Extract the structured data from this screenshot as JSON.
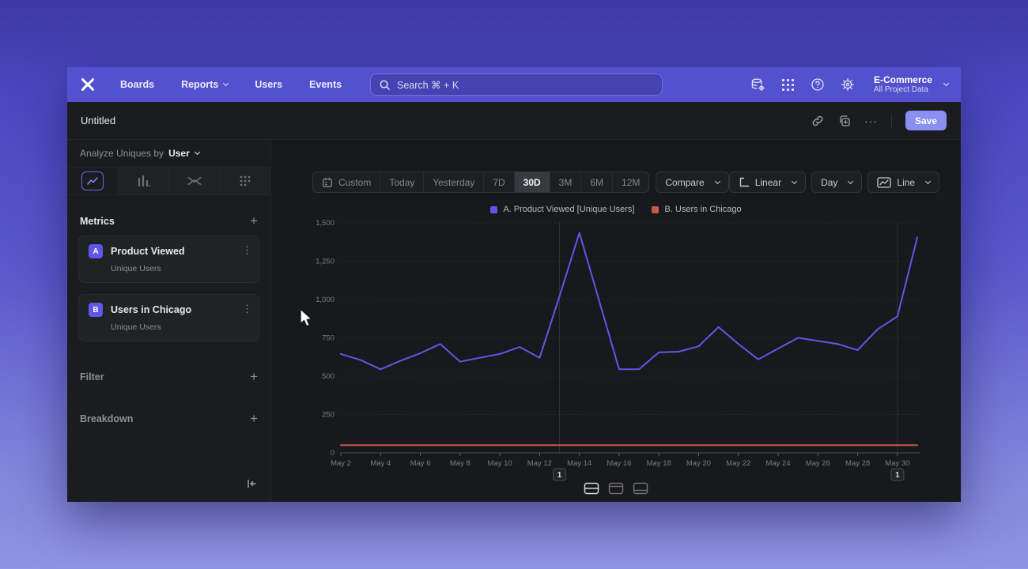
{
  "nav": {
    "items": [
      "Boards",
      "Reports",
      "Users",
      "Events"
    ],
    "search": {
      "placeholder": "Search  ⌘ + K"
    },
    "project": {
      "name": "E-Commerce",
      "scope": "All Project Data"
    }
  },
  "toolbar": {
    "title": "Untitled",
    "save_label": "Save"
  },
  "icons": {
    "more_glyph": "···",
    "kebab_glyph": "⋮",
    "plus_glyph": "+"
  },
  "sidebar": {
    "analyze_prefix": "Analyze Uniques by",
    "analyze_value": "User",
    "metrics_header": "Metrics",
    "metrics": [
      {
        "badge": "A",
        "name": "Product Viewed",
        "sub": "Unique Users"
      },
      {
        "badge": "B",
        "name": "Users in Chicago",
        "sub": "Unique Users"
      }
    ],
    "filter_header": "Filter",
    "breakdown_header": "Breakdown"
  },
  "controls": {
    "date_ranges": [
      "Custom",
      "Today",
      "Yesterday",
      "7D",
      "30D",
      "3M",
      "6M",
      "12M"
    ],
    "selected_range": "30D",
    "compare_label": "Compare",
    "scale_label": "Linear",
    "interval_label": "Day",
    "chart_type_label": "Line"
  },
  "chart_data": {
    "type": "line",
    "title": "",
    "x": [
      "May 2",
      "May 3",
      "May 4",
      "May 5",
      "May 6",
      "May 7",
      "May 8",
      "May 9",
      "May 10",
      "May 11",
      "May 12",
      "May 13",
      "May 14",
      "May 15",
      "May 16",
      "May 17",
      "May 18",
      "May 19",
      "May 20",
      "May 21",
      "May 22",
      "May 23",
      "May 24",
      "May 25",
      "May 26",
      "May 27",
      "May 28",
      "May 29",
      "May 30",
      "May 31"
    ],
    "series": [
      {
        "name": "A. Product Viewed [Unique Users]",
        "color": "#6156e8",
        "values": [
          645,
          605,
          545,
          600,
          650,
          710,
          595,
          620,
          645,
          690,
          620,
          1020,
          1435,
          990,
          545,
          545,
          655,
          660,
          695,
          820,
          710,
          610,
          680,
          750,
          730,
          710,
          670,
          805,
          890,
          1405
        ]
      },
      {
        "name": "B. Users in Chicago",
        "color": "#c9574b",
        "values": [
          50,
          50,
          50,
          50,
          50,
          50,
          50,
          50,
          50,
          50,
          50,
          50,
          50,
          50,
          50,
          50,
          50,
          50,
          50,
          50,
          50,
          50,
          50,
          50,
          50,
          50,
          50,
          50,
          50,
          50
        ]
      }
    ],
    "ylim": [
      0,
      1500
    ],
    "yticks": [
      0,
      250,
      500,
      750,
      1000,
      1250,
      1500
    ],
    "ytick_labels": [
      "0",
      "250",
      "500",
      "750",
      "1,000",
      "1,250",
      "1,500"
    ],
    "xtick_labels": [
      "May 2",
      "May 4",
      "May 6",
      "May 8",
      "May 10",
      "May 12",
      "May 14",
      "May 16",
      "May 18",
      "May 20",
      "May 22",
      "May 24",
      "May 26",
      "May 28",
      "May 30"
    ],
    "annotations": [
      {
        "label": "1",
        "x": "May 13"
      },
      {
        "label": "1",
        "x": "May 30"
      }
    ],
    "legend_position": "top",
    "grid": "horizontal-dashed"
  }
}
